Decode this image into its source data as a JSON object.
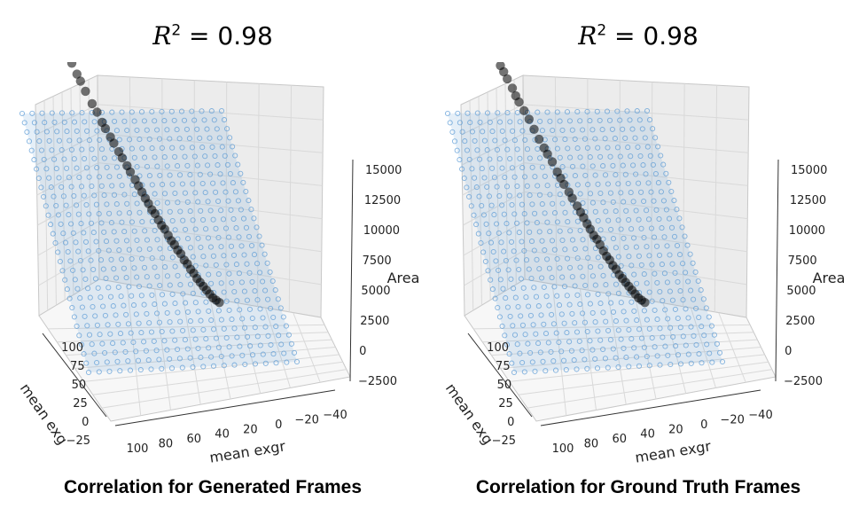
{
  "chart_data": [
    {
      "type": "scatter",
      "title_prefix": "R",
      "title_exponent": "2",
      "title_value": " = 0.98",
      "caption": "Correlation for Generated Frames",
      "xlabel": "mean exgr",
      "ylabel": "mean exg",
      "zlabel": "Area",
      "x_ticks": [
        "100",
        "80",
        "60",
        "40",
        "20",
        "0",
        "−20",
        "−40"
      ],
      "y_ticks": [
        "100",
        "75",
        "50",
        "25",
        "0",
        "−25"
      ],
      "z_ticks": [
        "15000",
        "12500",
        "10000",
        "7500",
        "5000",
        "2500",
        "0",
        "−2500"
      ],
      "xlim": [
        -50,
        110
      ],
      "ylim": [
        -30,
        110
      ],
      "zlim": [
        -2500,
        15000
      ],
      "grid": true,
      "plane_color": "#5b9bd5",
      "point_color": "#000000",
      "fitted_plane": {
        "z_at_x_min": 15500,
        "z_at_x_max": -2000
      },
      "points": [
        {
          "x": 100,
          "y": 88,
          "z": 14600
        },
        {
          "x": 98,
          "y": 85,
          "z": 14300
        },
        {
          "x": 95,
          "y": 80,
          "z": 13700
        },
        {
          "x": 92,
          "y": 76,
          "z": 13200
        },
        {
          "x": 90,
          "y": 72,
          "z": 12900
        },
        {
          "x": 87,
          "y": 68,
          "z": 12400
        },
        {
          "x": 85,
          "y": 65,
          "z": 12100
        },
        {
          "x": 82,
          "y": 62,
          "z": 11600
        },
        {
          "x": 78,
          "y": 58,
          "z": 11000
        },
        {
          "x": 75,
          "y": 55,
          "z": 10600
        },
        {
          "x": 72,
          "y": 52,
          "z": 10100
        },
        {
          "x": 70,
          "y": 50,
          "z": 9800
        },
        {
          "x": 67,
          "y": 47,
          "z": 9400
        },
        {
          "x": 65,
          "y": 45,
          "z": 9100
        },
        {
          "x": 62,
          "y": 42,
          "z": 8700
        },
        {
          "x": 60,
          "y": 40,
          "z": 8400
        },
        {
          "x": 57,
          "y": 38,
          "z": 8000
        },
        {
          "x": 55,
          "y": 36,
          "z": 7700
        },
        {
          "x": 52,
          "y": 34,
          "z": 7300
        },
        {
          "x": 50,
          "y": 32,
          "z": 7000
        },
        {
          "x": 48,
          "y": 30,
          "z": 6700
        },
        {
          "x": 46,
          "y": 28,
          "z": 6400
        },
        {
          "x": 44,
          "y": 27,
          "z": 6100
        },
        {
          "x": 42,
          "y": 25,
          "z": 5800
        },
        {
          "x": 40,
          "y": 24,
          "z": 5600
        },
        {
          "x": 38,
          "y": 22,
          "z": 5300
        },
        {
          "x": 36,
          "y": 21,
          "z": 5000
        },
        {
          "x": 34,
          "y": 20,
          "z": 4800
        },
        {
          "x": 32,
          "y": 18,
          "z": 4500
        },
        {
          "x": 30,
          "y": 17,
          "z": 4200
        },
        {
          "x": 28,
          "y": 16,
          "z": 4000
        },
        {
          "x": 26,
          "y": 15,
          "z": 3700
        },
        {
          "x": 24,
          "y": 14,
          "z": 3500
        },
        {
          "x": 22,
          "y": 12,
          "z": 3200
        },
        {
          "x": 20,
          "y": 11,
          "z": 3000
        },
        {
          "x": 18,
          "y": 10,
          "z": 2700
        },
        {
          "x": 16,
          "y": 9,
          "z": 2500
        },
        {
          "x": 14,
          "y": 8,
          "z": 2200
        },
        {
          "x": 12,
          "y": 7,
          "z": 2000
        },
        {
          "x": 10,
          "y": 6,
          "z": 1800
        },
        {
          "x": 8,
          "y": 5,
          "z": 1600
        },
        {
          "x": 6,
          "y": 4,
          "z": 1400
        },
        {
          "x": 4,
          "y": 3,
          "z": 1200
        },
        {
          "x": 2,
          "y": 2,
          "z": 1100
        },
        {
          "x": 0,
          "y": 1,
          "z": 1000
        }
      ]
    },
    {
      "type": "scatter",
      "title_prefix": "R",
      "title_exponent": "2",
      "title_value": " = 0.98",
      "caption": "Correlation for Ground Truth Frames",
      "xlabel": "mean exgr",
      "ylabel": "mean exg",
      "zlabel": "Area",
      "x_ticks": [
        "100",
        "80",
        "60",
        "40",
        "20",
        "0",
        "−20",
        "−40"
      ],
      "y_ticks": [
        "100",
        "75",
        "50",
        "25",
        "0",
        "−25"
      ],
      "z_ticks": [
        "15000",
        "12500",
        "10000",
        "7500",
        "5000",
        "2500",
        "0",
        "−2500"
      ],
      "xlim": [
        -50,
        110
      ],
      "ylim": [
        -30,
        110
      ],
      "zlim": [
        -2500,
        15000
      ],
      "grid": true,
      "plane_color": "#5b9bd5",
      "point_color": "#000000",
      "fitted_plane": {
        "z_at_x_min": 15500,
        "z_at_x_max": -2000
      },
      "points": [
        {
          "x": 98,
          "y": 86,
          "z": 14400
        },
        {
          "x": 96,
          "y": 83,
          "z": 14100
        },
        {
          "x": 93,
          "y": 79,
          "z": 13600
        },
        {
          "x": 90,
          "y": 75,
          "z": 13200
        },
        {
          "x": 88,
          "y": 71,
          "z": 12800
        },
        {
          "x": 86,
          "y": 69,
          "z": 12500
        },
        {
          "x": 84,
          "y": 66,
          "z": 12200
        },
        {
          "x": 81,
          "y": 62,
          "z": 11800
        },
        {
          "x": 79,
          "y": 60,
          "z": 11400
        },
        {
          "x": 77,
          "y": 58,
          "z": 11100
        },
        {
          "x": 74,
          "y": 55,
          "z": 10700
        },
        {
          "x": 71,
          "y": 52,
          "z": 10300
        },
        {
          "x": 68,
          "y": 49,
          "z": 9800
        },
        {
          "x": 65,
          "y": 46,
          "z": 9300
        },
        {
          "x": 62,
          "y": 43,
          "z": 8900
        },
        {
          "x": 60,
          "y": 41,
          "z": 8600
        },
        {
          "x": 57,
          "y": 39,
          "z": 8200
        },
        {
          "x": 54,
          "y": 36,
          "z": 7700
        },
        {
          "x": 52,
          "y": 34,
          "z": 7400
        },
        {
          "x": 50,
          "y": 32,
          "z": 7100
        },
        {
          "x": 47,
          "y": 30,
          "z": 6700
        },
        {
          "x": 45,
          "y": 28,
          "z": 6400
        },
        {
          "x": 42,
          "y": 26,
          "z": 6000
        },
        {
          "x": 40,
          "y": 24,
          "z": 5700
        },
        {
          "x": 38,
          "y": 23,
          "z": 5400
        },
        {
          "x": 36,
          "y": 21,
          "z": 5100
        },
        {
          "x": 34,
          "y": 20,
          "z": 4800
        },
        {
          "x": 32,
          "y": 18,
          "z": 4500
        },
        {
          "x": 30,
          "y": 17,
          "z": 4300
        },
        {
          "x": 28,
          "y": 16,
          "z": 4000
        },
        {
          "x": 26,
          "y": 14,
          "z": 3700
        },
        {
          "x": 24,
          "y": 13,
          "z": 3400
        },
        {
          "x": 22,
          "y": 12,
          "z": 3200
        },
        {
          "x": 20,
          "y": 11,
          "z": 2900
        },
        {
          "x": 18,
          "y": 10,
          "z": 2700
        },
        {
          "x": 16,
          "y": 9,
          "z": 2400
        },
        {
          "x": 14,
          "y": 8,
          "z": 2200
        },
        {
          "x": 12,
          "y": 7,
          "z": 2000
        },
        {
          "x": 10,
          "y": 6,
          "z": 1800
        },
        {
          "x": 8,
          "y": 5,
          "z": 1600
        },
        {
          "x": 6,
          "y": 4,
          "z": 1400
        },
        {
          "x": 4,
          "y": 3,
          "z": 1200
        },
        {
          "x": 2,
          "y": 2,
          "z": 1100
        },
        {
          "x": 0,
          "y": 1,
          "z": 1000
        }
      ]
    }
  ]
}
